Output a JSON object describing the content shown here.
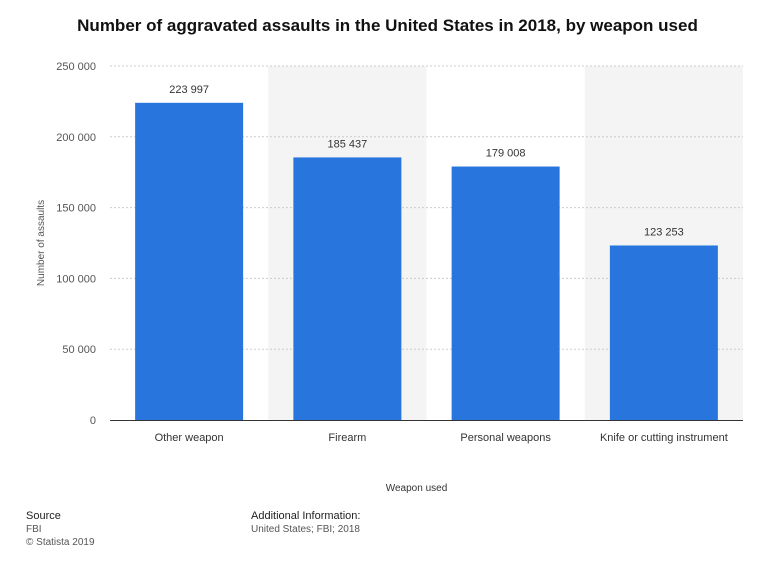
{
  "chart_data": {
    "type": "bar",
    "title": "Number of aggravated assaults in the United States in 2018, by weapon used",
    "xlabel": "Weapon used",
    "ylabel": "Number of assaults",
    "categories": [
      "Other weapon",
      "Firearm",
      "Personal weapons",
      "Knife or cutting instrument"
    ],
    "values": [
      223997,
      185437,
      179008,
      123253
    ],
    "value_labels": [
      "223 997",
      "185 437",
      "179 008",
      "123 253"
    ],
    "ylim": [
      0,
      250000
    ],
    "yticks": [
      0,
      50000,
      100000,
      150000,
      200000,
      250000
    ],
    "ytick_labels": [
      "0",
      "50 000",
      "100 000",
      "150 000",
      "200 000",
      "250 000"
    ],
    "grid": true,
    "bar_color": "#2876dd"
  },
  "footer": {
    "source_label": "Source",
    "source_value": "FBI",
    "copyright": "© Statista 2019",
    "info_label": "Additional Information:",
    "info_value": "United States; FBI; 2018"
  }
}
